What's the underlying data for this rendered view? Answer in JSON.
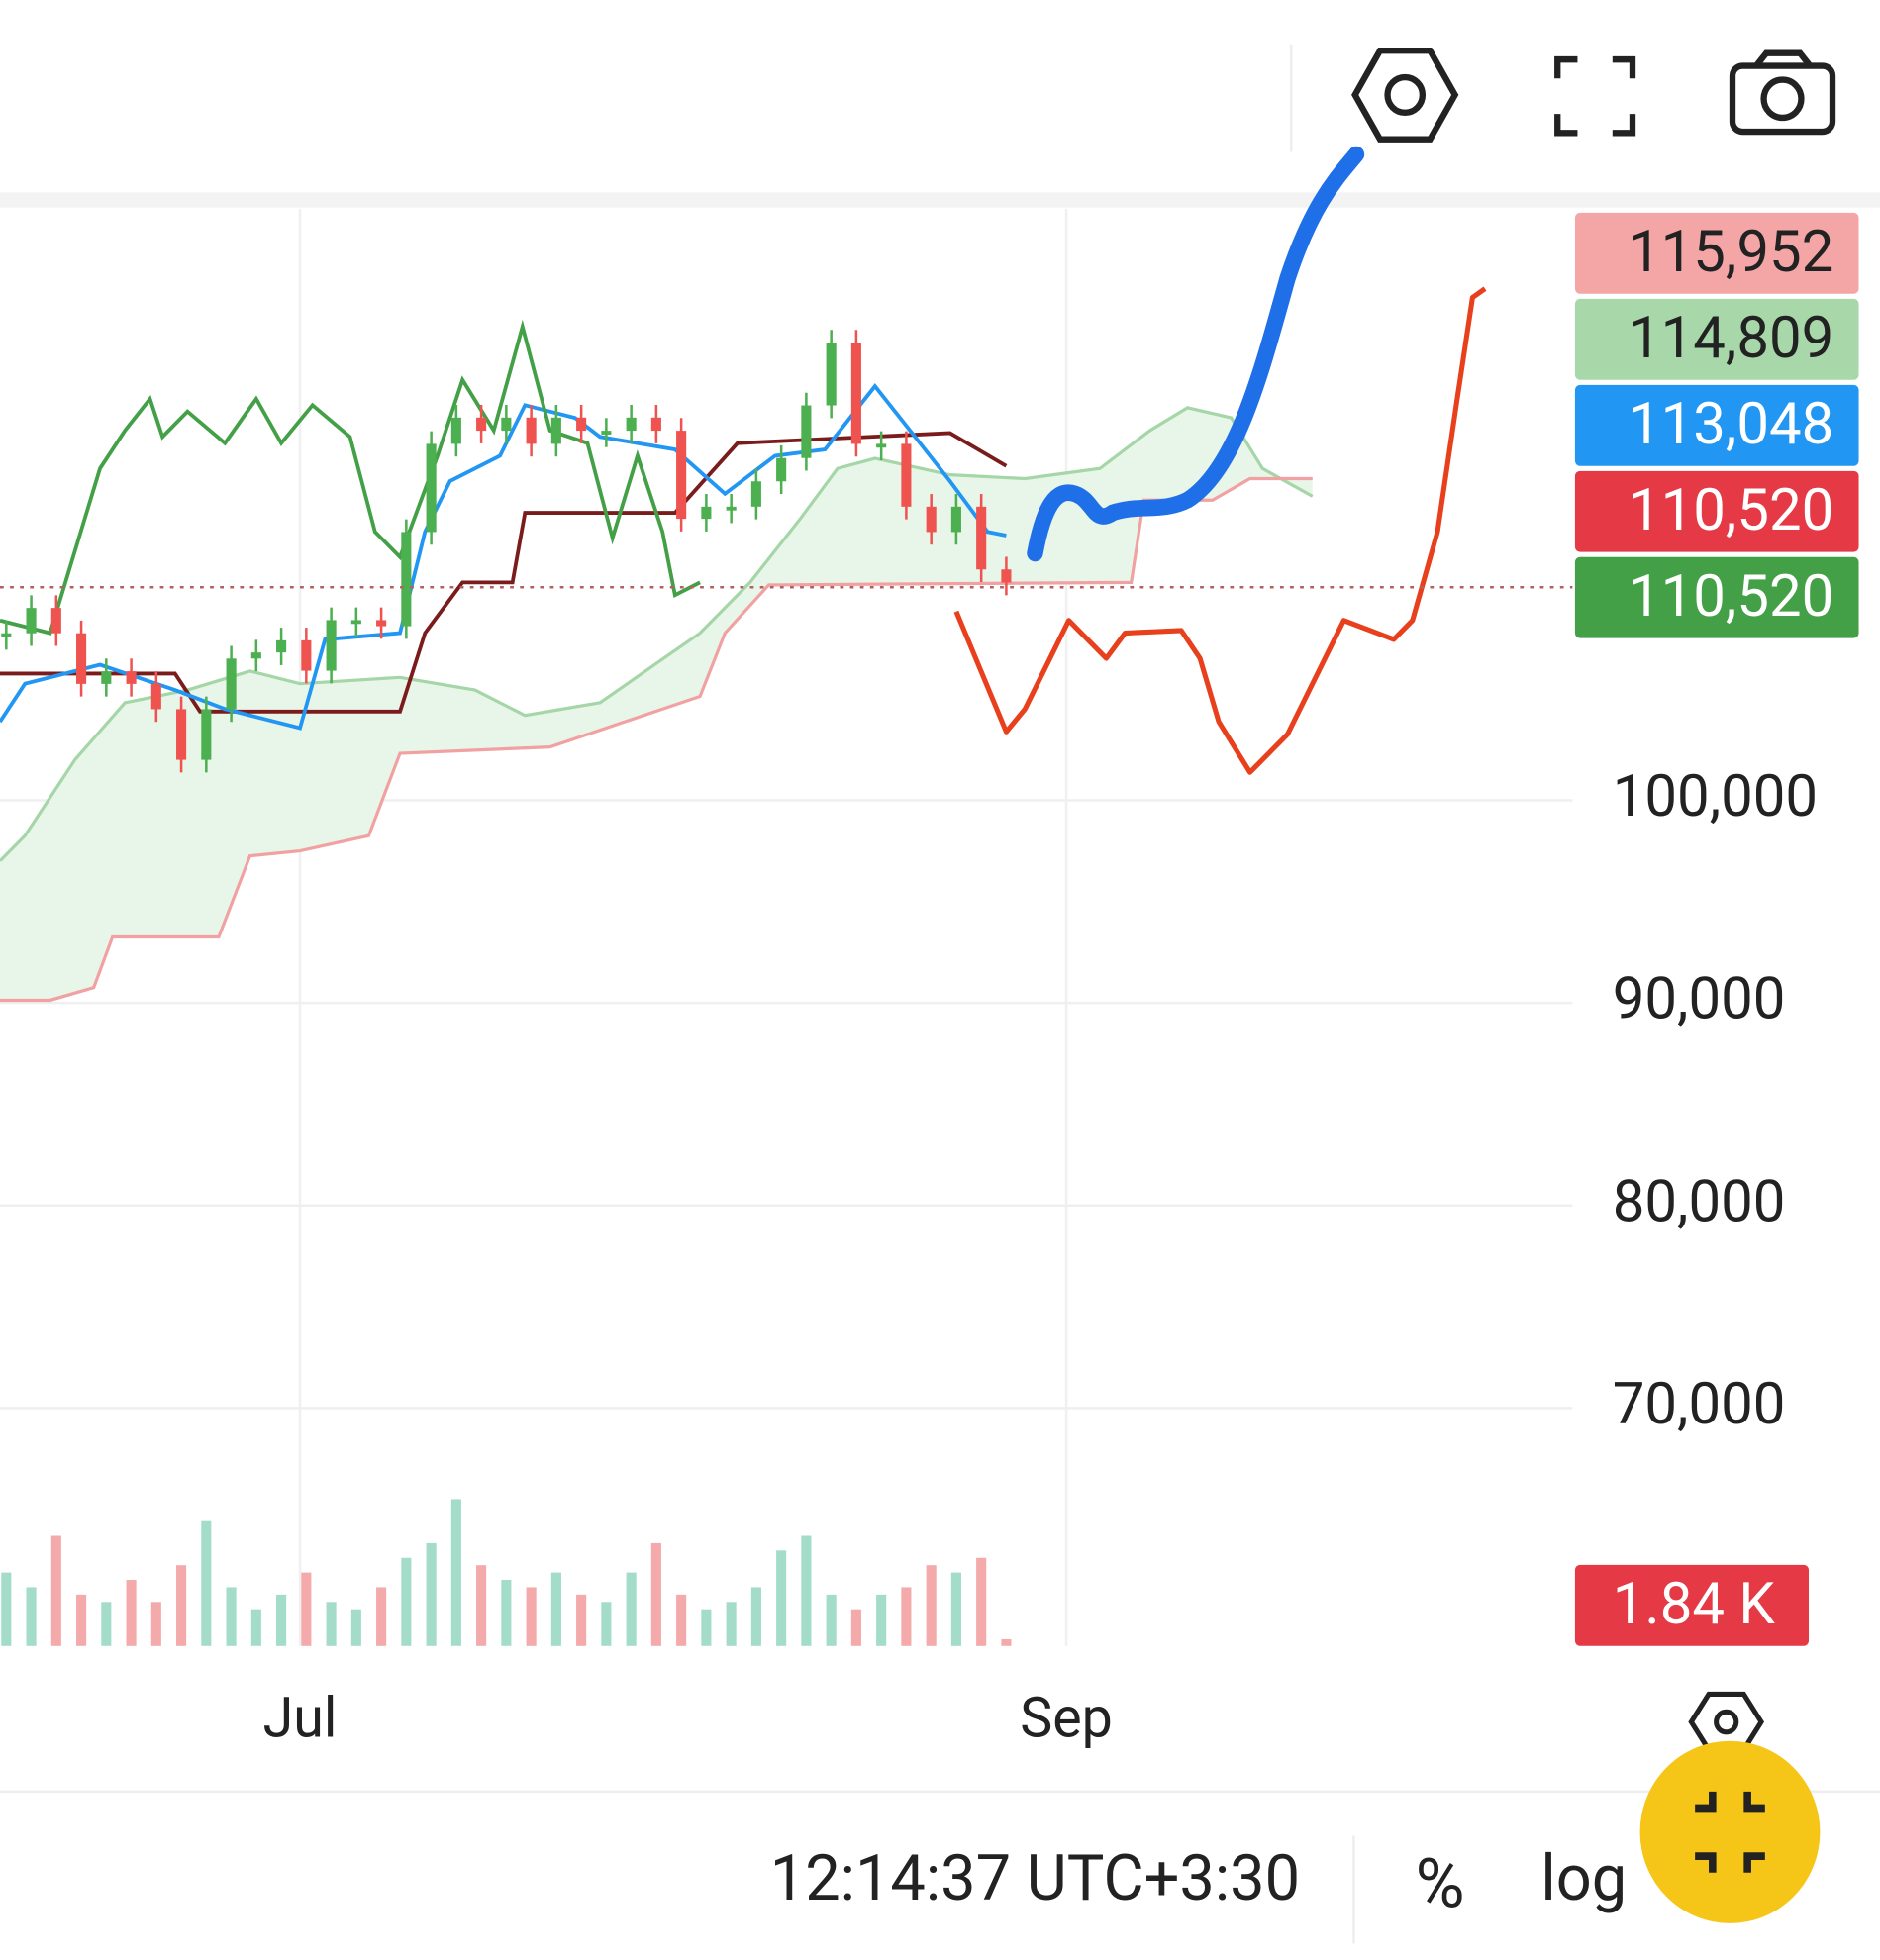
{
  "chart_data": {
    "type": "candlestick",
    "values": [
      108250,
      109500,
      108250,
      105750,
      106375,
      105750,
      104500,
      102000,
      104500,
      107000,
      107300,
      107900,
      106400,
      108900,
      108900,
      108600,
      113250,
      117600,
      118900,
      118250,
      118900,
      117600,
      118900,
      118250,
      118250,
      118900,
      118250,
      113900,
      114500,
      114500,
      115750,
      116900,
      119500,
      122600,
      117600,
      117600,
      114500,
      113250,
      114500,
      111400,
      110750
    ],
    "volume": [
      20,
      16,
      30,
      14,
      12,
      18,
      12,
      22,
      34,
      16,
      10,
      14,
      20,
      12,
      10,
      16,
      24,
      28,
      40,
      22,
      18,
      16,
      20,
      14,
      12,
      20,
      28,
      14,
      10,
      12,
      16,
      26,
      30,
      14,
      10,
      14,
      16,
      22,
      20,
      24,
      1.84
    ],
    "current_volume": {
      "value": 1.84,
      "label": "1.84 K"
    },
    "ylim": [
      58250,
      129200
    ],
    "yticks": [
      {
        "value": 100000,
        "label": "100,000"
      },
      {
        "value": 90000,
        "label": "90,000"
      },
      {
        "value": 80000,
        "label": "80,000"
      },
      {
        "value": 70000,
        "label": "70,000"
      }
    ],
    "xlim": [
      -0.25,
      62.5
    ],
    "xticks": [
      {
        "value": 11.75,
        "label": "Jul"
      },
      {
        "value": 42.4,
        "label": "Sep"
      }
    ],
    "price_labels": [
      {
        "value": 115952,
        "label": "115,952",
        "color": "#f4a6a6",
        "text_color": "#222222"
      },
      {
        "value": 114809,
        "label": "114,809",
        "color": "#a8d8aa",
        "text_color": "#222222"
      },
      {
        "value": 113048,
        "label": "113,048",
        "color": "#2196f3",
        "text_color": "#ffffff"
      },
      {
        "value": 110520,
        "label": "110,520",
        "color": "#e53945",
        "text_color": "#ffffff"
      },
      {
        "value": 110520,
        "label": "110,520",
        "color": "#43a047",
        "text_color": "#ffffff"
      }
    ],
    "up_color": "#4caf50",
    "down_color": "#ef5350",
    "grid": true
  },
  "footer": {
    "time": "12:14:37 UTC+3:30",
    "percent": "%",
    "log": "log"
  }
}
